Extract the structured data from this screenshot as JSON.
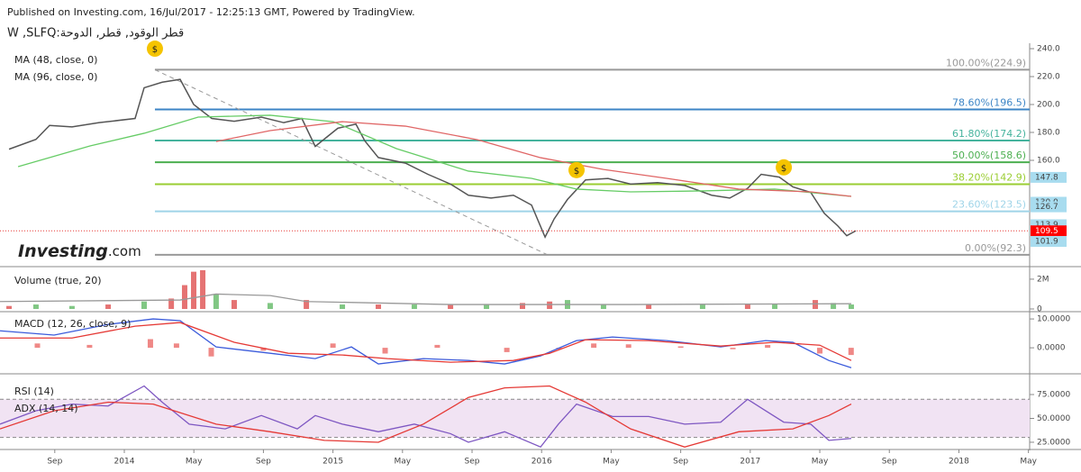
{
  "header": {
    "published": "Published on Investing.com, 16/Jul/2017 - 12:25:13 GMT, Powered by TradingView.",
    "symbol": "W ,SLFQ:قطر الوقود, قطر, الدوحة",
    "logo": "Investing",
    "logo_suffix": ".com"
  },
  "chart_data": [
    {
      "type": "line",
      "xlim": [
        -7.15,
        52.07
      ],
      "ylim": [
        85.8,
        242.6
      ],
      "yticks": [
        {
          "value": 160,
          "label": "160.0"
        },
        {
          "value": 180,
          "label": "180.0"
        },
        {
          "value": 200,
          "label": "200.0"
        },
        {
          "value": 220,
          "label": "220.0"
        },
        {
          "value": 240,
          "label": "240.0"
        }
      ],
      "series": [
        {
          "color": "#555555",
          "x": [
            -6.63,
            -5.08,
            -4.3,
            -3.01,
            -1.45,
            0.62,
            1.14,
            2.18,
            3.21,
            3.99,
            5.03,
            6.32,
            7.88,
            9.17,
            10.21,
            10.98,
            12.28,
            13.32,
            13.83,
            14.61,
            16.17,
            17.46,
            18.76,
            19.79,
            21.09,
            22.38,
            23.42,
            24.2,
            24.72,
            25.49,
            26.53,
            27.82,
            29.12,
            30.67,
            32.23,
            33.78,
            34.82,
            35.85,
            36.63,
            37.67,
            38.45,
            39.48,
            40.26,
            41.04,
            41.55,
            42.07
          ],
          "values": [
            168,
            175,
            185,
            184,
            187,
            190,
            212,
            216,
            218,
            200,
            190,
            188,
            191,
            187,
            190,
            170,
            183,
            186,
            174,
            162,
            158,
            150,
            143,
            135,
            133,
            135,
            128,
            105,
            118,
            132,
            146,
            147,
            143,
            144,
            142,
            135,
            133,
            140,
            150,
            148,
            141,
            137,
            122,
            113,
            106,
            109.5
          ]
        },
        {
          "name": "MA (48, close, 0)",
          "color": "#66cc66",
          "x": [
            -6.11,
            -1.97,
            1.14,
            4.25,
            8.39,
            12.02,
            15.65,
            19.79,
            23.42,
            26.01,
            29.12,
            33.26,
            37.41,
            41.81
          ],
          "values": [
            155.5,
            170.3,
            179.4,
            191,
            192.3,
            187.7,
            168.4,
            152.3,
            147.1,
            139.4,
            137.4,
            138.1,
            139.4,
            134.2
          ]
        },
        {
          "name": "MA (96, close, 0)",
          "color": "#e06666",
          "x": [
            5.28,
            8.39,
            12.54,
            16.17,
            20.31,
            23.94,
            27.56,
            31.19,
            35.34,
            39.48,
            41.81
          ],
          "values": [
            173.5,
            181.3,
            187.7,
            184.5,
            174.8,
            161.9,
            153.5,
            147.1,
            139.4,
            137.4,
            134.2
          ]
        }
      ],
      "trend_line": {
        "x": [
          1.76,
          24.35
        ],
        "values": [
          224.9,
          92.3
        ]
      },
      "fib_levels": [
        {
          "label": "100.00%(224.9)",
          "value": 224.9,
          "color": "#999999"
        },
        {
          "label": "78.60%(196.5)",
          "value": 196.5,
          "color": "#3d85c6"
        },
        {
          "label": "61.80%(174.2)",
          "value": 174.2,
          "color": "#45b39d"
        },
        {
          "label": "50.00%(158.6)",
          "value": 158.6,
          "color": "#4caf50"
        },
        {
          "label": "38.20%(142.9)",
          "value": 142.9,
          "color": "#9acd32"
        },
        {
          "label": "23.60%(123.5)",
          "value": 123.5,
          "color": "#9fd4e8"
        },
        {
          "label": "0.00%(92.3)",
          "value": 92.3,
          "color": "#999999"
        }
      ],
      "price_labels": [
        {
          "label": "147.8",
          "value": 147.8,
          "color": "#a8dcef"
        },
        {
          "label": "130.0",
          "value": 130.0,
          "color": "#a8dcef"
        },
        {
          "label": "126.7",
          "value": 126.7,
          "color": "#a8dcef"
        },
        {
          "label": "113.9",
          "value": 113.9,
          "color": "#a8dcef"
        },
        {
          "label": "109.5",
          "value": 109.5,
          "color": "#ff0000"
        },
        {
          "label": "101.9",
          "value": 101.9,
          "color": "#a8dcef"
        }
      ],
      "dividends": {
        "label": "$",
        "x": [
          1.76,
          26.01,
          37.93
        ],
        "values": [
          240,
          153,
          155
        ]
      }
    },
    {
      "type": "bar",
      "label": "Volume (true, 20)",
      "xlim": [
        -7.15,
        52.07
      ],
      "ylim": [
        0,
        2.6
      ],
      "yticks": [
        0,
        {
          "value": 2,
          "label": "2M"
        }
      ],
      "x": [
        -6.63,
        -5.08,
        -3.01,
        -0.93,
        1.14,
        2.7,
        3.47,
        3.99,
        4.51,
        5.28,
        6.32,
        8.39,
        10.47,
        12.54,
        14.61,
        16.68,
        18.76,
        20.83,
        22.9,
        24.46,
        25.49,
        27.56,
        30.16,
        33.26,
        35.85,
        37.41,
        39.74,
        40.78,
        41.81
      ],
      "values": [
        0.2,
        0.3,
        0.2,
        0.3,
        0.5,
        0.7,
        1.6,
        2.5,
        2.6,
        1.0,
        0.6,
        0.4,
        0.6,
        0.3,
        0.3,
        0.3,
        0.3,
        0.3,
        0.4,
        0.5,
        0.6,
        0.3,
        0.3,
        0.3,
        0.3,
        0.3,
        0.6,
        0.4,
        0.3
      ],
      "colors": [
        "#e57373",
        "#81c784",
        "#81c784",
        "#e57373",
        "#81c784",
        "#e57373",
        "#e57373",
        "#e57373",
        "#e57373",
        "#81c784",
        "#e57373",
        "#81c784",
        "#e57373",
        "#81c784",
        "#e57373",
        "#81c784",
        "#e57373",
        "#81c784",
        "#e57373",
        "#e57373",
        "#81c784",
        "#81c784",
        "#e57373",
        "#81c784",
        "#e57373",
        "#81c784",
        "#e57373",
        "#81c784",
        "#81c784"
      ],
      "series": [
        {
          "color": "#999999",
          "x": [
            -7.15,
            3.21,
            5.28,
            8.39,
            10.47,
            18.76,
            29.12,
            41.81
          ],
          "values": [
            0.5,
            0.6,
            1.0,
            0.9,
            0.5,
            0.3,
            0.3,
            0.35
          ]
        }
      ]
    },
    {
      "type": "line",
      "label": "MACD (12, 26, close, 9)",
      "xlim": [
        -7.15,
        52.07
      ],
      "ylim": [
        -8.4,
        11.9
      ],
      "yticks": [
        {
          "value": 0,
          "label": "0.0000"
        },
        {
          "value": 10,
          "label": "10.0000"
        }
      ],
      "series": [
        {
          "color": "#3b5bdb",
          "x": [
            -7.15,
            -4.04,
            -0.93,
            1.66,
            3.21,
            5.28,
            8.39,
            10.98,
            13.06,
            14.61,
            17.2,
            19.79,
            21.87,
            23.94,
            26.01,
            28.08,
            31.19,
            34.3,
            36.89,
            38.45,
            40.52,
            41.81
          ],
          "values": [
            5.9,
            4.4,
            8.1,
            10,
            9.4,
            0.3,
            -1.9,
            -3.75,
            0.3,
            -5.6,
            -3.75,
            -4.4,
            -5.6,
            -2.8,
            2.5,
            3.75,
            2.5,
            0.3,
            2.5,
            1.9,
            -4.4,
            -6.9
          ]
        },
        {
          "color": "#e53935",
          "x": [
            -7.15,
            -3.01,
            0.62,
            3.21,
            6.32,
            9.43,
            12.54,
            15.13,
            18.76,
            22.38,
            24.46,
            26.53,
            30.16,
            34.3,
            37.41,
            40.0,
            41.81
          ],
          "values": [
            3.4,
            3.4,
            7.5,
            8.75,
            1.9,
            -1.9,
            -2.5,
            -3.75,
            -5,
            -4.4,
            -1.9,
            2.8,
            2.5,
            0.6,
            1.9,
            0.9,
            -4.4
          ]
        }
      ],
      "histogram": {
        "color": "#e53935",
        "x": [
          -5,
          -2,
          1.5,
          3,
          5,
          8,
          12,
          15,
          18,
          22,
          25,
          27,
          29,
          32,
          35,
          37,
          40,
          41.8
        ],
        "values": [
          1.5,
          1.0,
          3,
          1.5,
          -3,
          -1,
          1.5,
          -2,
          1,
          -1.5,
          -0.5,
          1.5,
          1.2,
          0.5,
          -0.5,
          1,
          -2,
          -2.5
        ]
      }
    },
    {
      "type": "line",
      "xlim": [
        -7.15,
        52.07
      ],
      "ylim": [
        19.3,
        93.9
      ],
      "yticks": [
        {
          "value": 25,
          "label": "25.0000"
        },
        {
          "value": 50,
          "label": "50.0000"
        },
        {
          "value": 75,
          "label": "75.0000"
        }
      ],
      "band": [
        30,
        70
      ],
      "xticks": [
        {
          "value": -4,
          "label": "Sep"
        },
        {
          "value": 0,
          "label": "2014"
        },
        {
          "value": 4,
          "label": "May"
        },
        {
          "value": 8,
          "label": "Sep"
        },
        {
          "value": 12,
          "label": "2015"
        },
        {
          "value": 16,
          "label": "May"
        },
        {
          "value": 20,
          "label": "Sep"
        },
        {
          "value": 24,
          "label": "2016"
        },
        {
          "value": 28,
          "label": "May"
        },
        {
          "value": 32,
          "label": "Sep"
        },
        {
          "value": 36,
          "label": "2017"
        },
        {
          "value": 40,
          "label": "May"
        },
        {
          "value": 44,
          "label": "Sep"
        },
        {
          "value": 48,
          "label": "2018"
        },
        {
          "value": 52,
          "label": "May"
        }
      ],
      "series": [
        {
          "name": "RSI (14)",
          "color": "#7e57c2",
          "x": [
            -7.15,
            -5.08,
            -3.01,
            -0.93,
            1.14,
            2.18,
            3.73,
            5.8,
            7.88,
            9.95,
            10.98,
            12.54,
            14.61,
            16.68,
            18.76,
            19.79,
            21.87,
            23.94,
            24.97,
            26.01,
            28.08,
            30.16,
            32.23,
            34.3,
            35.85,
            36.89,
            37.93,
            39.48,
            40.52,
            41.81
          ],
          "values": [
            44,
            58,
            65,
            63,
            84,
            67,
            44,
            39,
            53,
            39,
            53,
            44,
            36,
            44,
            34,
            25,
            36,
            20,
            44,
            65,
            52,
            52,
            44,
            46,
            70,
            58,
            46,
            44,
            27,
            29
          ]
        },
        {
          "name": "ADX (14, 14)",
          "color": "#e53935",
          "x": [
            -7.15,
            -4.04,
            -0.93,
            1.66,
            5.28,
            8.39,
            11.5,
            14.61,
            17.2,
            19.79,
            21.87,
            24.46,
            26.53,
            29.12,
            32.23,
            35.34,
            38.45,
            40.52,
            41.81
          ],
          "values": [
            39,
            58,
            67,
            65,
            44,
            36,
            27,
            25,
            44,
            72,
            82,
            84,
            67,
            39,
            20,
            36,
            39,
            53,
            65
          ]
        }
      ]
    }
  ]
}
